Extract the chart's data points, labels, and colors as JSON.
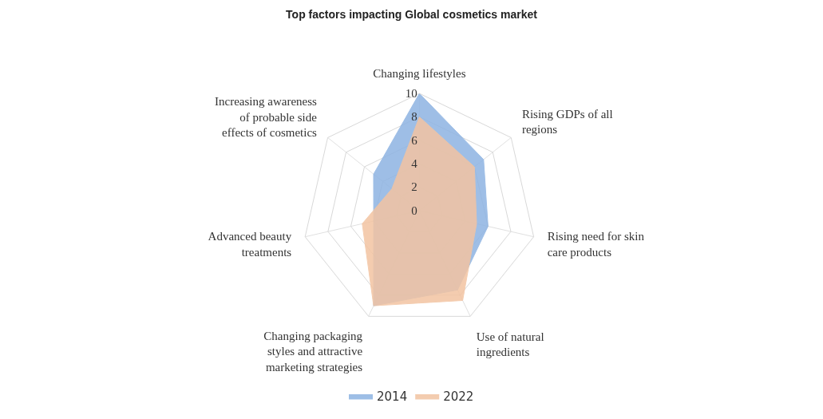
{
  "chart_data": {
    "type": "radar",
    "title": "Top factors impacting Global cosmetics market",
    "categories": [
      "Changing lifestyles",
      "Rising GDPs of all regions",
      "Rising need for skin care products",
      "Use of natural ingredients",
      "Changing packaging styles and attractive marketing strategies",
      "Advanced beauty treatments",
      "Increasing awareness of probable side effects of cosmetics"
    ],
    "series": [
      {
        "name": "2014",
        "color": "#8db3e2",
        "values": [
          10,
          7,
          6,
          7.5,
          9,
          4,
          5
        ]
      },
      {
        "name": "2022",
        "color": "#f2c4a2",
        "values": [
          8,
          6,
          5,
          8.5,
          9,
          5,
          3
        ]
      }
    ],
    "ylim": [
      0,
      10
    ],
    "yticks": [
      0,
      2,
      4,
      6,
      8,
      10
    ],
    "grid": true,
    "legend": "bottom",
    "marker": "none"
  }
}
